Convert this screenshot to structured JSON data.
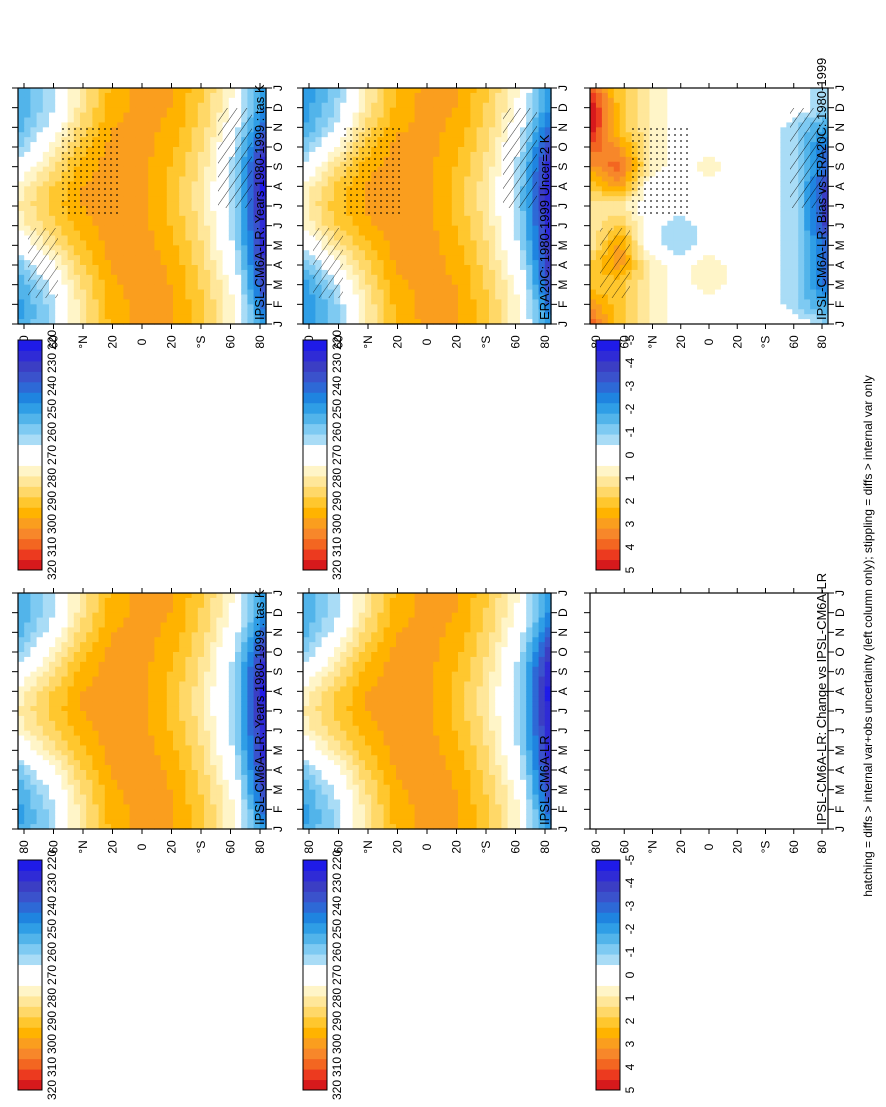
{
  "footer_note": "hatching = diffs > internal var+obs uncertainty (left column only); stippling = diffs > internal var only",
  "months": [
    "J",
    "F",
    "M",
    "A",
    "M",
    "J",
    "J",
    "A",
    "S",
    "O",
    "N",
    "D",
    "J"
  ],
  "lat_ticks": [
    "80",
    "60",
    "°N",
    "20",
    "0",
    "20",
    "°S",
    "60",
    "80"
  ],
  "panels": [
    {
      "id": "model-left",
      "title": "IPSL-CM6A-LR: Years 1980-1999 : tas K",
      "kind": "temperature",
      "marks": true,
      "empty": false
    },
    {
      "id": "model-right",
      "title": "IPSL-CM6A-LR: Years 1980-1999 : tas K",
      "kind": "temperature",
      "marks": false,
      "empty": false
    },
    {
      "id": "obs-left",
      "title": "ERA20C: 1980-1999 Uncer=2 K",
      "kind": "temperature",
      "marks": true,
      "empty": false
    },
    {
      "id": "obs-right",
      "title": "IPSL-CM6A-LR",
      "kind": "temperature",
      "marks": false,
      "empty": false
    },
    {
      "id": "bias-left",
      "title": "IPSL-CM6A-LR: Bias vs ERA20C: 1980-1999",
      "kind": "difference",
      "marks": true,
      "empty": false
    },
    {
      "id": "change-right",
      "title": "IPSL-CM6A-LR: Change vs IPSL-CM6A-LR",
      "kind": "difference",
      "marks": false,
      "empty": true
    }
  ],
  "colorbars": {
    "temperature": {
      "labels": [
        "320",
        "310",
        "300",
        "290",
        "280",
        "270",
        "260",
        "250",
        "240",
        "230",
        "220"
      ],
      "colors": [
        "#d7191c",
        "#ec3a1f",
        "#f36621",
        "#f7872a",
        "#fa9e1e",
        "#ffb300",
        "#ffc72e",
        "#ffd868",
        "#ffe79a",
        "#fff5c8",
        "#ffffff",
        "#ffffff",
        "#a9dcf6",
        "#7ecaf2",
        "#52b4ea",
        "#2f9ee6",
        "#1f84e0",
        "#2d69d6",
        "#3a52cc",
        "#3b3ec4",
        "#2f2bd6",
        "#1f1be8"
      ]
    },
    "difference": {
      "labels": [
        "5",
        "4",
        "3",
        "2",
        "1",
        "0",
        "-1",
        "-2",
        "-3",
        "-4",
        "-5"
      ],
      "colors": [
        "#d7191c",
        "#ec3a1f",
        "#f36621",
        "#f7872a",
        "#fa9e1e",
        "#ffb300",
        "#ffc72e",
        "#ffd868",
        "#ffe79a",
        "#fff5c8",
        "#ffffff",
        "#ffffff",
        "#a9dcf6",
        "#7ecaf2",
        "#52b4ea",
        "#2f9ee6",
        "#1f84e0",
        "#2d69d6",
        "#3a52cc",
        "#3b3ec4",
        "#2f2bd6",
        "#1f1be8"
      ]
    }
  },
  "chart_data": [
    {
      "type": "heatmap",
      "title": "IPSL-CM6A-LR: Years 1980-1999 : tas K",
      "x": [
        "J",
        "F",
        "M",
        "A",
        "M",
        "J",
        "J",
        "A",
        "S",
        "O",
        "N",
        "D",
        "J"
      ],
      "y_ticks": [
        "80",
        "60",
        "°N",
        "20",
        "0",
        "20",
        "°S",
        "60",
        "80"
      ],
      "legend": "top-right",
      "rows": [
        {
          "lat": "80N",
          "values": [
            251,
            250,
            252,
            258,
            268,
            276,
            279,
            276,
            268,
            260,
            254,
            252,
            251
          ]
        },
        {
          "lat": "60N",
          "values": [
            262,
            262,
            266,
            272,
            280,
            286,
            289,
            287,
            281,
            274,
            267,
            263,
            262
          ]
        },
        {
          "lat": "40N",
          "values": [
            280,
            280,
            283,
            287,
            291,
            295,
            297,
            297,
            294,
            290,
            285,
            281,
            280
          ]
        },
        {
          "lat": "20N",
          "values": [
            294,
            295,
            296,
            298,
            299,
            300,
            300,
            300,
            300,
            299,
            297,
            295,
            294
          ]
        },
        {
          "lat": "0",
          "values": [
            299,
            299,
            300,
            300,
            300,
            299,
            299,
            299,
            299,
            299,
            299,
            299,
            299
          ]
        },
        {
          "lat": "20S",
          "values": [
            298,
            298,
            297,
            296,
            294,
            292,
            291,
            291,
            292,
            294,
            296,
            297,
            298
          ]
        },
        {
          "lat": "40S",
          "values": [
            288,
            288,
            287,
            285,
            283,
            281,
            280,
            280,
            281,
            283,
            285,
            287,
            288
          ]
        },
        {
          "lat": "60S",
          "values": [
            274,
            274,
            272,
            268,
            264,
            262,
            261,
            261,
            262,
            265,
            269,
            272,
            274
          ]
        },
        {
          "lat": "80S",
          "values": [
            246,
            238,
            230,
            226,
            224,
            222,
            221,
            220,
            222,
            228,
            238,
            245,
            246
          ]
        }
      ]
    },
    {
      "type": "heatmap",
      "title": "ERA20C: 1980-1999 Uncer=2 K",
      "x": [
        "J",
        "F",
        "M",
        "A",
        "M",
        "J",
        "J",
        "A",
        "S",
        "O",
        "N",
        "D",
        "J"
      ],
      "rows": [
        {
          "lat": "80N",
          "values": [
            248,
            247,
            249,
            256,
            267,
            275,
            278,
            275,
            266,
            258,
            251,
            249,
            248
          ]
        },
        {
          "lat": "60N",
          "values": [
            258,
            259,
            263,
            271,
            280,
            287,
            290,
            288,
            282,
            273,
            265,
            260,
            258
          ]
        },
        {
          "lat": "40N",
          "values": [
            278,
            279,
            282,
            286,
            291,
            296,
            298,
            298,
            295,
            290,
            284,
            280,
            278
          ]
        },
        {
          "lat": "20N",
          "values": [
            293,
            294,
            296,
            298,
            299,
            301,
            301,
            301,
            300,
            299,
            296,
            294,
            293
          ]
        },
        {
          "lat": "0",
          "values": [
            299,
            299,
            299,
            299,
            300,
            299,
            299,
            299,
            299,
            299,
            299,
            299,
            299
          ]
        },
        {
          "lat": "20S",
          "values": [
            298,
            298,
            297,
            296,
            294,
            292,
            291,
            291,
            292,
            294,
            296,
            297,
            298
          ]
        },
        {
          "lat": "40S",
          "values": [
            288,
            288,
            287,
            285,
            283,
            281,
            280,
            280,
            281,
            283,
            285,
            287,
            288
          ]
        },
        {
          "lat": "60S",
          "values": [
            274,
            274,
            272,
            268,
            264,
            261,
            260,
            260,
            262,
            265,
            269,
            272,
            274
          ]
        },
        {
          "lat": "80S",
          "values": [
            247,
            240,
            232,
            228,
            226,
            224,
            222,
            222,
            224,
            230,
            239,
            246,
            247
          ]
        }
      ]
    },
    {
      "type": "heatmap",
      "title": "IPSL-CM6A-LR: Bias vs ERA20C: 1980-1999",
      "x": [
        "J",
        "F",
        "M",
        "A",
        "M",
        "J",
        "J",
        "A",
        "S",
        "O",
        "N",
        "D",
        "J"
      ],
      "rows": [
        {
          "lat": "80N",
          "values": [
            4,
            3,
            2,
            2,
            1,
            1,
            1,
            2,
            3,
            4,
            5,
            5,
            4
          ]
        },
        {
          "lat": "60N",
          "values": [
            2,
            2,
            2,
            3,
            3,
            2,
            1,
            3,
            4,
            3,
            2,
            2,
            2
          ]
        },
        {
          "lat": "40N",
          "values": [
            1,
            1,
            1,
            1,
            0,
            0,
            0,
            0,
            1,
            1,
            1,
            1,
            1
          ]
        },
        {
          "lat": "20N",
          "values": [
            0,
            0,
            0,
            0,
            -1,
            -1,
            0,
            0,
            0,
            0,
            0,
            0,
            0
          ]
        },
        {
          "lat": "0",
          "values": [
            0,
            0,
            1,
            1,
            0,
            0,
            0,
            0,
            1,
            0,
            0,
            0,
            0
          ]
        },
        {
          "lat": "20S",
          "values": [
            0,
            0,
            0,
            0,
            0,
            0,
            0,
            0,
            0,
            0,
            0,
            0,
            0
          ]
        },
        {
          "lat": "40S",
          "values": [
            0,
            0,
            0,
            0,
            0,
            0,
            0,
            0,
            0,
            0,
            0,
            0,
            0
          ]
        },
        {
          "lat": "60S",
          "values": [
            0,
            -1,
            -1,
            -1,
            -1,
            -1,
            -1,
            -1,
            -1,
            -1,
            -1,
            0,
            0
          ]
        },
        {
          "lat": "80S",
          "values": [
            -1,
            -2,
            -3,
            -3,
            -3,
            -4,
            -4,
            -4,
            -3,
            -3,
            -2,
            -1,
            -1
          ]
        }
      ]
    }
  ]
}
